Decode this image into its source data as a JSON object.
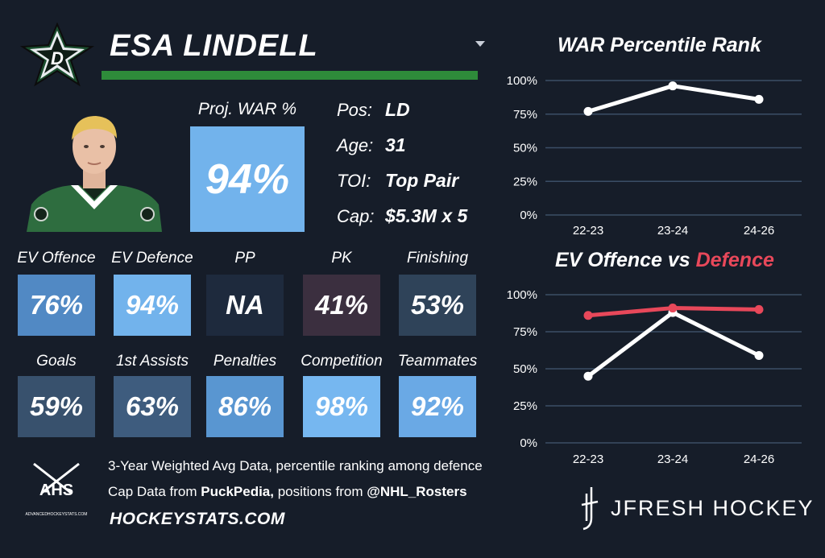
{
  "player": {
    "name": "ESA LINDELL",
    "team_logo": "dallas-stars-logo",
    "team_logo_letter": "D",
    "proj_war_label": "Proj. WAR %",
    "proj_war_value": "94%"
  },
  "info": [
    {
      "label": "Pos:",
      "value": "LD"
    },
    {
      "label": "Age:",
      "value": "31"
    },
    {
      "label": "TOI:",
      "value": "Top Pair"
    },
    {
      "label": "Cap:",
      "value": "$5.3M x 5"
    }
  ],
  "stats_row1": [
    {
      "label": "EV Offence",
      "value": "76%",
      "color": "#5189c4"
    },
    {
      "label": "EV Defence",
      "value": "94%",
      "color": "#72b3ec"
    },
    {
      "label": "PP",
      "value": "NA",
      "color": "#1e2a3d"
    },
    {
      "label": "PK",
      "value": "41%",
      "color": "#3b2f3f"
    },
    {
      "label": "Finishing",
      "value": "53%",
      "color": "#2f4359"
    }
  ],
  "stats_row2": [
    {
      "label": "Goals",
      "value": "59%",
      "color": "#38516d"
    },
    {
      "label": "1st Assists",
      "value": "63%",
      "color": "#3e5c7e"
    },
    {
      "label": "Penalties",
      "value": "86%",
      "color": "#5996d1"
    },
    {
      "label": "Competition",
      "value": "98%",
      "color": "#76b7f0"
    },
    {
      "label": "Teammates",
      "value": "92%",
      "color": "#6aa9e5"
    }
  ],
  "footer": {
    "line1": "3-Year Weighted Avg Data, percentile ranking among defence",
    "line2_prefix": "Cap Data from ",
    "line2_bold1": "PuckPedia,",
    "line2_mid": " positions from ",
    "line2_bold2": "@NHL_Rosters",
    "site": "HOCKEYSTATS.COM",
    "ahs_logo_text": "AHS",
    "ahs_logo_sub": "ADVANCEDHOCKEYSTATS.COM",
    "brand": "JFRESH HOCKEY"
  },
  "chart_data": [
    {
      "type": "line",
      "title": "WAR Percentile Rank",
      "categories": [
        "22-23",
        "23-24",
        "24-26"
      ],
      "series": [
        {
          "name": "WAR",
          "values": [
            77,
            96,
            86
          ],
          "color": "#ffffff"
        }
      ],
      "ylim": [
        0,
        100
      ],
      "yticks": [
        "0%",
        "25%",
        "50%",
        "75%",
        "100%"
      ],
      "grid": true
    },
    {
      "type": "line",
      "title_part1": "EV Offence vs ",
      "title_part2": "Defence",
      "title_part2_color": "#e8485a",
      "categories": [
        "22-23",
        "23-24",
        "24-26"
      ],
      "series": [
        {
          "name": "EV Offence",
          "values": [
            45,
            88,
            59
          ],
          "color": "#ffffff"
        },
        {
          "name": "EV Defence",
          "values": [
            86,
            91,
            90
          ],
          "color": "#e8485a"
        }
      ],
      "ylim": [
        0,
        100
      ],
      "yticks": [
        "0%",
        "25%",
        "50%",
        "75%",
        "100%"
      ],
      "grid": true
    }
  ]
}
